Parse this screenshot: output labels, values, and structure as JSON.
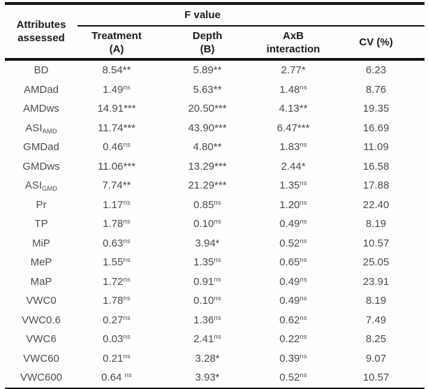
{
  "header": {
    "attributes": "Attributes assessed",
    "f_value": "F value",
    "columns": [
      {
        "line1": "Treatment",
        "line2": "(A)"
      },
      {
        "line1": "Depth",
        "line2": "(B)"
      },
      {
        "line1": "AxB",
        "line2": "interaction"
      }
    ],
    "cv": "CV (%)"
  },
  "colors": {
    "rule": "#161616",
    "header_text": "#1c1c1c",
    "data_text": "#4a4a4a",
    "background": "#fefefe"
  },
  "rows": [
    {
      "name": "BD",
      "sub": "",
      "t": {
        "v": "8.54",
        "sig": "**"
      },
      "d": {
        "v": "5.89",
        "sig": "**"
      },
      "i": {
        "v": "2.77",
        "sig": "*"
      },
      "cv": "6.23"
    },
    {
      "name": "AMDad",
      "sub": "",
      "t": {
        "v": "1.49",
        "sig": "ns"
      },
      "d": {
        "v": "5.63",
        "sig": "**"
      },
      "i": {
        "v": "1.48",
        "sig": "ns"
      },
      "cv": "8.76"
    },
    {
      "name": "AMDws",
      "sub": "",
      "t": {
        "v": "14.91",
        "sig": "***"
      },
      "d": {
        "v": "20.50",
        "sig": "***"
      },
      "i": {
        "v": "4.13",
        "sig": "**"
      },
      "cv": "19.35"
    },
    {
      "name": "ASI",
      "sub": "AMD",
      "t": {
        "v": "11.74",
        "sig": "***"
      },
      "d": {
        "v": "43.90",
        "sig": "***"
      },
      "i": {
        "v": "6.47",
        "sig": "***"
      },
      "cv": "16.69"
    },
    {
      "name": "GMDad",
      "sub": "",
      "t": {
        "v": "0.46",
        "sig": "ns"
      },
      "d": {
        "v": "4.80",
        "sig": "**"
      },
      "i": {
        "v": "1.83",
        "sig": "ns"
      },
      "cv": "11.09"
    },
    {
      "name": "GMDws",
      "sub": "",
      "t": {
        "v": "11.06",
        "sig": "***"
      },
      "d": {
        "v": "13.29",
        "sig": "***"
      },
      "i": {
        "v": "2.44",
        "sig": "*"
      },
      "cv": "16.58"
    },
    {
      "name": "ASI",
      "sub": "GMD",
      "t": {
        "v": "7.74",
        "sig": "**"
      },
      "d": {
        "v": "21.29",
        "sig": "***"
      },
      "i": {
        "v": "1.35",
        "sig": "ns"
      },
      "cv": "17.88"
    },
    {
      "name": "Pr",
      "sub": "",
      "t": {
        "v": "1.17",
        "sig": "ns"
      },
      "d": {
        "v": "0.85",
        "sig": "ns"
      },
      "i": {
        "v": "1.20",
        "sig": "ns"
      },
      "cv": "22.40"
    },
    {
      "name": "TP",
      "sub": "",
      "t": {
        "v": "1.78",
        "sig": "ns"
      },
      "d": {
        "v": "0.10",
        "sig": "ns"
      },
      "i": {
        "v": "0.49",
        "sig": "ns"
      },
      "cv": "8.19"
    },
    {
      "name": "MiP",
      "sub": "",
      "t": {
        "v": "0.63",
        "sig": "ns"
      },
      "d": {
        "v": "3.94",
        "sig": "*"
      },
      "i": {
        "v": "0.52",
        "sig": "ns"
      },
      "cv": "10.57"
    },
    {
      "name": "MeP",
      "sub": "",
      "t": {
        "v": "1.55",
        "sig": "ns"
      },
      "d": {
        "v": "1.35",
        "sig": "ns"
      },
      "i": {
        "v": "0.65",
        "sig": "ns"
      },
      "cv": "25.05"
    },
    {
      "name": "MaP",
      "sub": "",
      "t": {
        "v": "1.72",
        "sig": "ns"
      },
      "d": {
        "v": "0.91",
        "sig": "ns"
      },
      "i": {
        "v": "0.49",
        "sig": "ns"
      },
      "cv": "23.91"
    },
    {
      "name": "VWC0",
      "sub": "",
      "t": {
        "v": "1.78",
        "sig": "ns"
      },
      "d": {
        "v": "0.10",
        "sig": "ns"
      },
      "i": {
        "v": "0.49",
        "sig": "ns"
      },
      "cv": "8.19"
    },
    {
      "name": "VWC0.6",
      "sub": "",
      "t": {
        "v": "0.27",
        "sig": "ns"
      },
      "d": {
        "v": "1.36",
        "sig": "ns"
      },
      "i": {
        "v": "0.62",
        "sig": "ns"
      },
      "cv": "7.49"
    },
    {
      "name": "VWC6",
      "sub": "",
      "t": {
        "v": "0.03",
        "sig": "ns"
      },
      "d": {
        "v": "2.41",
        "sig": "ns"
      },
      "i": {
        "v": "0.22",
        "sig": "ns"
      },
      "cv": "8.25"
    },
    {
      "name": "VWC60",
      "sub": "",
      "t": {
        "v": "0.21",
        "sig": "ns"
      },
      "d": {
        "v": "3.28",
        "sig": "*"
      },
      "i": {
        "v": "0.39",
        "sig": "ns"
      },
      "cv": "9.07"
    },
    {
      "name": "VWC600",
      "sub": "",
      "t": {
        "v": "0.64",
        "sig": "ns",
        "gap": true
      },
      "d": {
        "v": "3.93",
        "sig": "*"
      },
      "i": {
        "v": "0.52",
        "sig": "ns"
      },
      "cv": "10.57"
    }
  ]
}
